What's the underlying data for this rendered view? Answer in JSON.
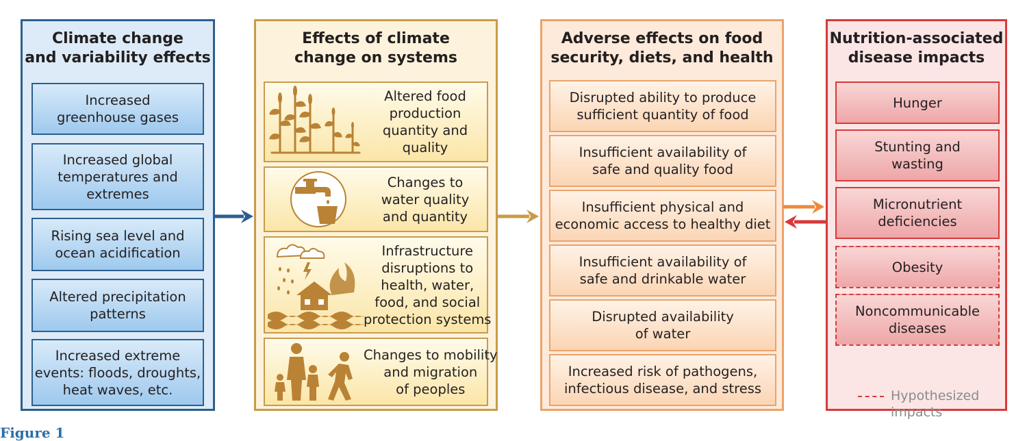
{
  "columns": {
    "climate": {
      "title": "Climate change\nand variability effects",
      "items": [
        "Increased\ngreenhouse gases",
        "Increased global\ntemperatures and\nextremes",
        "Rising sea level and\nocean acidification",
        "Altered precipitation\npatterns",
        "Increased extreme\nevents: floods, droughts,\nheat waves, etc."
      ]
    },
    "systems": {
      "title": "Effects of climate\nchange on systems",
      "items": [
        {
          "text": "Altered food\nproduction\nquantity and\nquality",
          "icon": "corn-field-icon"
        },
        {
          "text": "Changes to\nwater quality\nand quantity",
          "icon": "faucet-bucket-icon"
        },
        {
          "text": "Infrastructure\ndisruptions to\nhealth, water,\nfood, and social\nprotection systems",
          "icon": "storm-flood-house-icon"
        },
        {
          "text": "Changes to mobility\nand migration\nof peoples",
          "icon": "family-migration-icon"
        }
      ]
    },
    "adverse": {
      "title": "Adverse effects on food\nsecurity, diets, and health",
      "items": [
        "Disrupted ability to produce\nsufficient quantity of food",
        "Insufficient availability of\nsafe and quality food",
        "Insufficient physical and\neconomic access to healthy diet",
        "Insufficient availability of\nsafe and drinkable water",
        "Disrupted availability\nof water",
        "Increased risk of pathogens,\ninfectious disease, and stress"
      ]
    },
    "nutrition": {
      "title": "Nutrition-associated\ndisease impacts",
      "items": [
        {
          "text": "Hunger",
          "hypothesized": false
        },
        {
          "text": "Stunting and\nwasting",
          "hypothesized": false
        },
        {
          "text": "Micronutrient\ndeficiencies",
          "hypothesized": false
        },
        {
          "text": "Obesity",
          "hypothesized": true
        },
        {
          "text": "Noncommunicable\ndiseases",
          "hypothesized": true
        }
      ],
      "legend": "Hypothesized\nimpacts"
    }
  },
  "figure_label": "Figure 1",
  "colors": {
    "climate": "#2b5f8e",
    "systems": "#c89b4b",
    "adverse": "#eba36a",
    "nutrition": "#d63a3a",
    "icon": "#b98235"
  }
}
